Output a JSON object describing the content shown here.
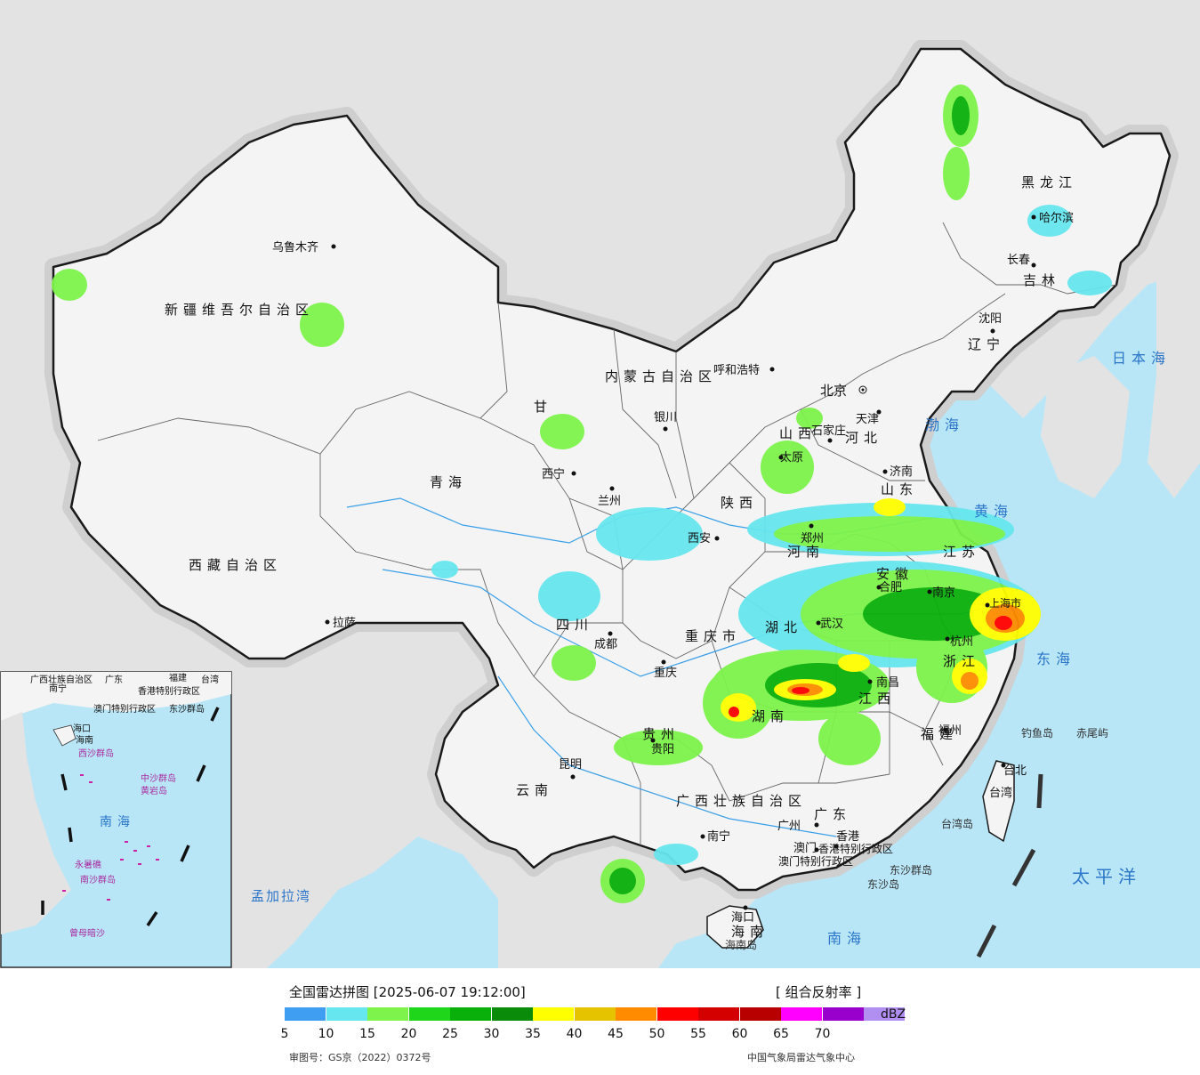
{
  "title": "全国雷达拼图 [2025-06-07 19:12:00]",
  "product": "[ 组合反射率 ]",
  "unit": "dBZ",
  "approval_number": "审图号：GS京（2022）0372号",
  "agency": "中国气象局雷达气象中心",
  "colors": {
    "sea": "#b8e6f7",
    "land_china": "#f4f4f4",
    "land_other": "#e3e3e3",
    "border": "#1a1a1a",
    "river": "#3aa0e8"
  },
  "scale": [
    {
      "value": "5",
      "color": "#3f9ef2"
    },
    {
      "value": "10",
      "color": "#66e6ee"
    },
    {
      "value": "15",
      "color": "#7df34b"
    },
    {
      "value": "20",
      "color": "#1fd61a"
    },
    {
      "value": "25",
      "color": "#0ab00a"
    },
    {
      "value": "30",
      "color": "#0a8c0a"
    },
    {
      "value": "35",
      "color": "#ffff00"
    },
    {
      "value": "40",
      "color": "#e6c300"
    },
    {
      "value": "45",
      "color": "#ff8c00"
    },
    {
      "value": "50",
      "color": "#ff0000"
    },
    {
      "value": "55",
      "color": "#d40000"
    },
    {
      "value": "60",
      "color": "#b80000"
    },
    {
      "value": "65",
      "color": "#ff00ff"
    },
    {
      "value": "70",
      "color": "#9900cc"
    },
    {
      "value": "",
      "color": "#b18ff0"
    }
  ],
  "labels": {
    "xinjiang": "新疆维吾尔自治区",
    "tibet": "西藏自治区",
    "qinghai": "青海",
    "gansu": "甘",
    "sichuan": "四川",
    "yunnan": "云南",
    "guizhou": "贵州",
    "guangxi": "广西壮族自治区",
    "guangdong": "广东",
    "hunan": "湖南",
    "hubei": "湖北",
    "henan": "河南",
    "shaanxi": "陕西",
    "shanxi": "山西",
    "hebei": "河北",
    "shandong": "山东",
    "jiangsu": "江苏",
    "anhui": "安徽",
    "zhejiang": "浙江",
    "jiangxi": "江西",
    "fujian": "福建",
    "heilongjiang": "黑龙江",
    "jilin": "吉林",
    "liaoning": "辽宁",
    "innermongolia": "内蒙古自治区",
    "chongqing": "重庆市",
    "hainan": "海南",
    "hongkong": "香港特别行政区",
    "macau": "澳门特别行政区",
    "taiwan": "台湾",
    "shanghai": "上海市"
  },
  "cities": [
    {
      "name": "乌鲁木齐"
    },
    {
      "name": "拉萨"
    },
    {
      "name": "西宁"
    },
    {
      "name": "兰州"
    },
    {
      "name": "银川"
    },
    {
      "name": "呼和浩特"
    },
    {
      "name": "北京"
    },
    {
      "name": "天津"
    },
    {
      "name": "石家庄"
    },
    {
      "name": "太原"
    },
    {
      "name": "济南"
    },
    {
      "name": "郑州"
    },
    {
      "name": "西安"
    },
    {
      "name": "成都"
    },
    {
      "name": "重庆"
    },
    {
      "name": "贵阳"
    },
    {
      "name": "昆明"
    },
    {
      "name": "南宁"
    },
    {
      "name": "广州"
    },
    {
      "name": "香港"
    },
    {
      "name": "澳门"
    },
    {
      "name": "海口"
    },
    {
      "name": "武汉"
    },
    {
      "name": "合肥"
    },
    {
      "name": "南京"
    },
    {
      "name": "上海"
    },
    {
      "name": "杭州"
    },
    {
      "name": "南昌"
    },
    {
      "name": "福州"
    },
    {
      "name": "台北"
    },
    {
      "name": "沈阳"
    },
    {
      "name": "长春"
    },
    {
      "name": "哈尔滨"
    }
  ],
  "seas": {
    "japan_sea": "日本海",
    "bohai": "渤海",
    "yellow_sea": "黄海",
    "east_sea": "东海",
    "south_sea": "南海",
    "pacific": "太平洋",
    "bengal": "孟加拉湾"
  },
  "islands": {
    "diaoyu": "钓鱼岛",
    "chiwei": "赤尾屿",
    "taiwan_island": "台湾岛",
    "dongsha": "东沙群岛",
    "dongsha_dao": "东沙岛",
    "hainan_dao": "海南岛"
  },
  "inset": {
    "guangxi": "广西壮族自治区",
    "nanning": "南宁",
    "guangdong": "广东",
    "fujian": "福建",
    "taiwan": "台湾",
    "hk": "香港特别行政区",
    "macau": "澳门特别行政区",
    "dongsha": "东沙群岛",
    "hainan": "海南",
    "haikou": "海口",
    "xisha": "西沙群岛",
    "zhongsha": "中沙群岛",
    "huangyan": "黄岩岛",
    "south_sea": "南海",
    "nansha": "南沙群岛",
    "yongshu": "永暑礁",
    "zengmu": "曾母暗沙"
  }
}
